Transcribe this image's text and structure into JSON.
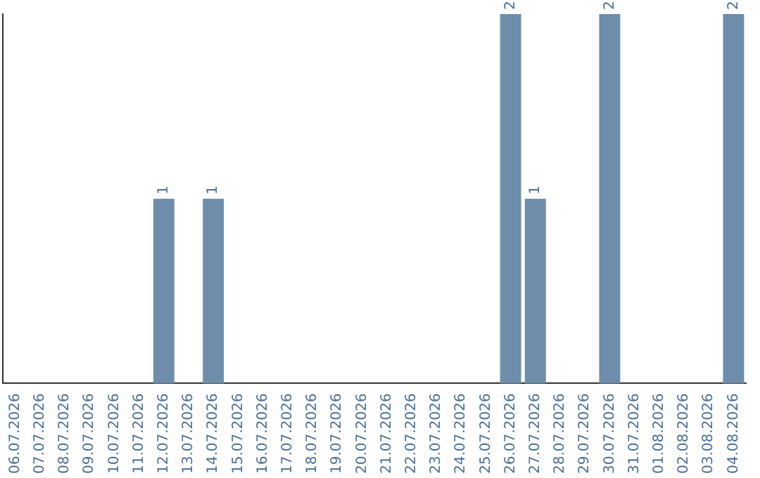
{
  "chart_data": {
    "type": "bar",
    "categories": [
      "06.07.2026",
      "07.07.2026",
      "08.07.2026",
      "09.07.2026",
      "10.07.2026",
      "11.07.2026",
      "12.07.2026",
      "13.07.2026",
      "14.07.2026",
      "15.07.2026",
      "16.07.2026",
      "17.07.2026",
      "18.07.2026",
      "19.07.2026",
      "20.07.2026",
      "21.07.2026",
      "22.07.2026",
      "23.07.2026",
      "24.07.2026",
      "25.07.2026",
      "26.07.2026",
      "27.07.2026",
      "28.07.2026",
      "29.07.2026",
      "30.07.2026",
      "31.07.2026",
      "01.08.2026",
      "02.08.2026",
      "03.08.2026",
      "04.08.2026"
    ],
    "values": [
      0,
      0,
      0,
      0,
      0,
      0,
      1,
      0,
      1,
      0,
      0,
      0,
      0,
      0,
      0,
      0,
      0,
      0,
      0,
      0,
      2,
      1,
      0,
      0,
      2,
      0,
      0,
      0,
      0,
      2
    ],
    "value_labels": [
      null,
      null,
      null,
      null,
      null,
      null,
      "1",
      null,
      "1",
      null,
      null,
      null,
      null,
      null,
      null,
      null,
      null,
      null,
      null,
      null,
      "2",
      "1",
      null,
      null,
      "2",
      null,
      null,
      null,
      null,
      "2"
    ],
    "color": "#6d8dab"
  }
}
